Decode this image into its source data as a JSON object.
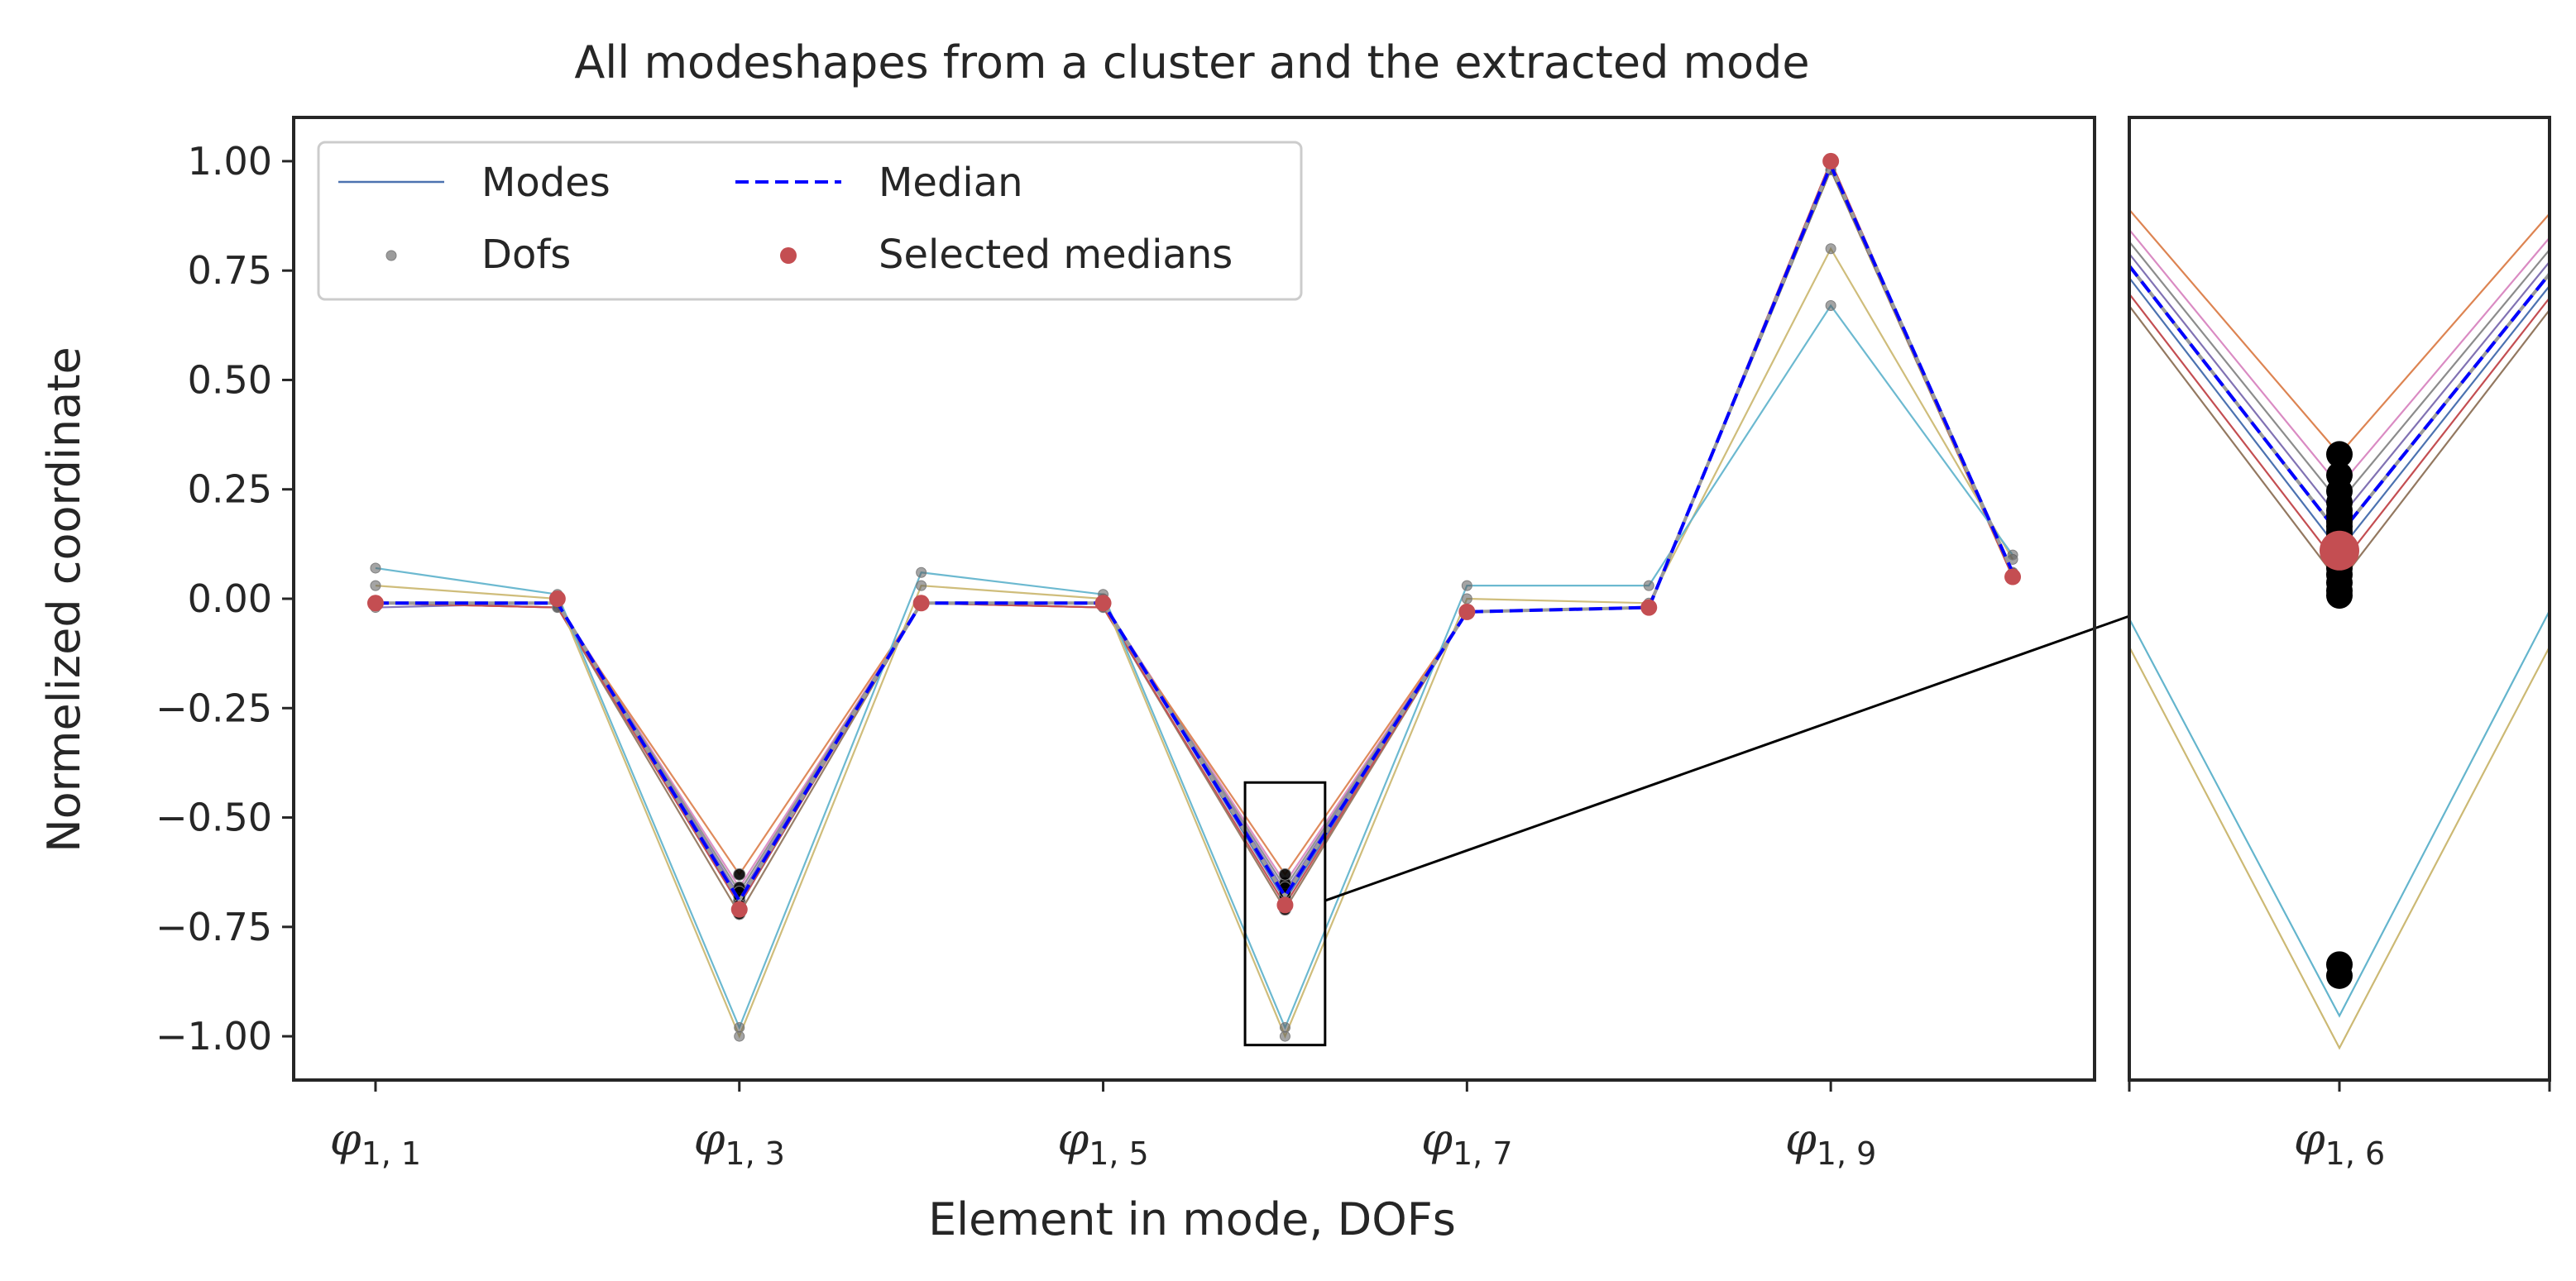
{
  "chart_data": {
    "type": "line",
    "title": "All modeshapes from a cluster and the extracted mode",
    "xlabel": "Element in mode, DOFs",
    "ylabel": "Normelized coordinate",
    "x": [
      1,
      2,
      3,
      4,
      5,
      6,
      7,
      8,
      9,
      10
    ],
    "xtick_labels": [
      {
        "x": 1,
        "base": "φ",
        "sub": "1, 1"
      },
      {
        "x": 3,
        "base": "φ",
        "sub": "1, 3"
      },
      {
        "x": 5,
        "base": "φ",
        "sub": "1, 5"
      },
      {
        "x": 7,
        "base": "φ",
        "sub": "1, 7"
      },
      {
        "x": 9,
        "base": "φ",
        "sub": "1, 9"
      }
    ],
    "ylim": [
      -1.1,
      1.1
    ],
    "xlim": [
      0.55,
      10.45
    ],
    "yticks": [
      1.0,
      0.75,
      0.5,
      0.25,
      0.0,
      -0.25,
      -0.5,
      -0.75,
      -1.0
    ],
    "ytick_labels": [
      "1.00",
      "0.75",
      "0.50",
      "0.25",
      "0.00",
      "−0.25",
      "−0.50",
      "−0.75",
      "−1.00"
    ],
    "legend": {
      "placement": "upper-left",
      "ncol": 2,
      "entries": [
        {
          "label": "Modes",
          "kind": "thin-line",
          "color": "#4c72b0"
        },
        {
          "label": "Median",
          "kind": "dashed-line",
          "color": "#0000ff"
        },
        {
          "label": "Dofs",
          "kind": "small-marker",
          "color": "#808080"
        },
        {
          "label": "Selected medians",
          "kind": "marker",
          "color": "#c44e52"
        }
      ]
    },
    "series": [
      {
        "color": "#4c72b0",
        "values": [
          -0.01,
          -0.01,
          -0.7,
          -0.01,
          -0.01,
          -0.69,
          -0.03,
          -0.02,
          0.98,
          0.06
        ]
      },
      {
        "color": "#55a868",
        "values": [
          -0.01,
          -0.01,
          -0.69,
          -0.01,
          -0.01,
          -0.68,
          -0.03,
          -0.02,
          0.98,
          0.06
        ]
      },
      {
        "color": "#8172b3",
        "values": [
          -0.02,
          -0.01,
          -0.68,
          -0.01,
          -0.01,
          -0.67,
          -0.03,
          -0.02,
          0.99,
          0.06
        ]
      },
      {
        "color": "#937860",
        "values": [
          -0.01,
          -0.02,
          -0.72,
          -0.01,
          -0.02,
          -0.71,
          -0.03,
          -0.02,
          0.98,
          0.05
        ]
      },
      {
        "color": "#da8bc3",
        "values": [
          -0.01,
          -0.01,
          -0.66,
          -0.01,
          -0.01,
          -0.65,
          -0.03,
          -0.02,
          0.99,
          0.06
        ]
      },
      {
        "color": "#8c8c8c",
        "values": [
          -0.01,
          -0.01,
          -0.67,
          -0.01,
          -0.01,
          -0.66,
          -0.03,
          -0.02,
          0.99,
          0.06
        ]
      },
      {
        "color": "#dd8452",
        "values": [
          -0.01,
          -0.02,
          -0.63,
          -0.01,
          -0.02,
          -0.63,
          -0.03,
          -0.02,
          0.99,
          0.05
        ]
      },
      {
        "color": "#c44e52",
        "values": [
          -0.01,
          -0.02,
          -0.7,
          -0.01,
          -0.02,
          -0.7,
          -0.03,
          -0.02,
          1.0,
          0.05
        ]
      },
      {
        "color": "#ccb974",
        "values": [
          0.03,
          0.0,
          -1.0,
          0.03,
          0.0,
          -1.0,
          0.0,
          -0.01,
          0.8,
          0.09
        ]
      },
      {
        "color": "#64b5cd",
        "values": [
          0.07,
          0.01,
          -0.98,
          0.06,
          0.01,
          -0.98,
          0.03,
          0.03,
          0.67,
          0.1
        ]
      }
    ],
    "median": [
      -0.01,
      -0.01,
      -0.69,
      -0.01,
      -0.01,
      -0.68,
      -0.03,
      -0.02,
      0.99,
      0.06
    ],
    "selected_medians": [
      -0.01,
      0.0,
      -0.71,
      -0.01,
      -0.01,
      -0.7,
      -0.03,
      -0.02,
      1.0,
      0.05
    ],
    "inset": {
      "xtick_label": {
        "base": "φ",
        "sub": "1, 6"
      },
      "x_center": 6,
      "ylim": [
        -1.02,
        -0.42
      ],
      "dofs": [
        -0.63,
        -0.643,
        -0.653,
        -0.66,
        -0.665,
        -0.668,
        -0.672,
        -0.675,
        -0.678,
        -0.681,
        -0.684,
        -0.687,
        -0.691,
        -0.694,
        -0.697,
        -0.701,
        -0.705,
        -0.71,
        -0.715,
        -0.718,
        -0.948,
        -0.955
      ],
      "selected_median": -0.69
    }
  }
}
